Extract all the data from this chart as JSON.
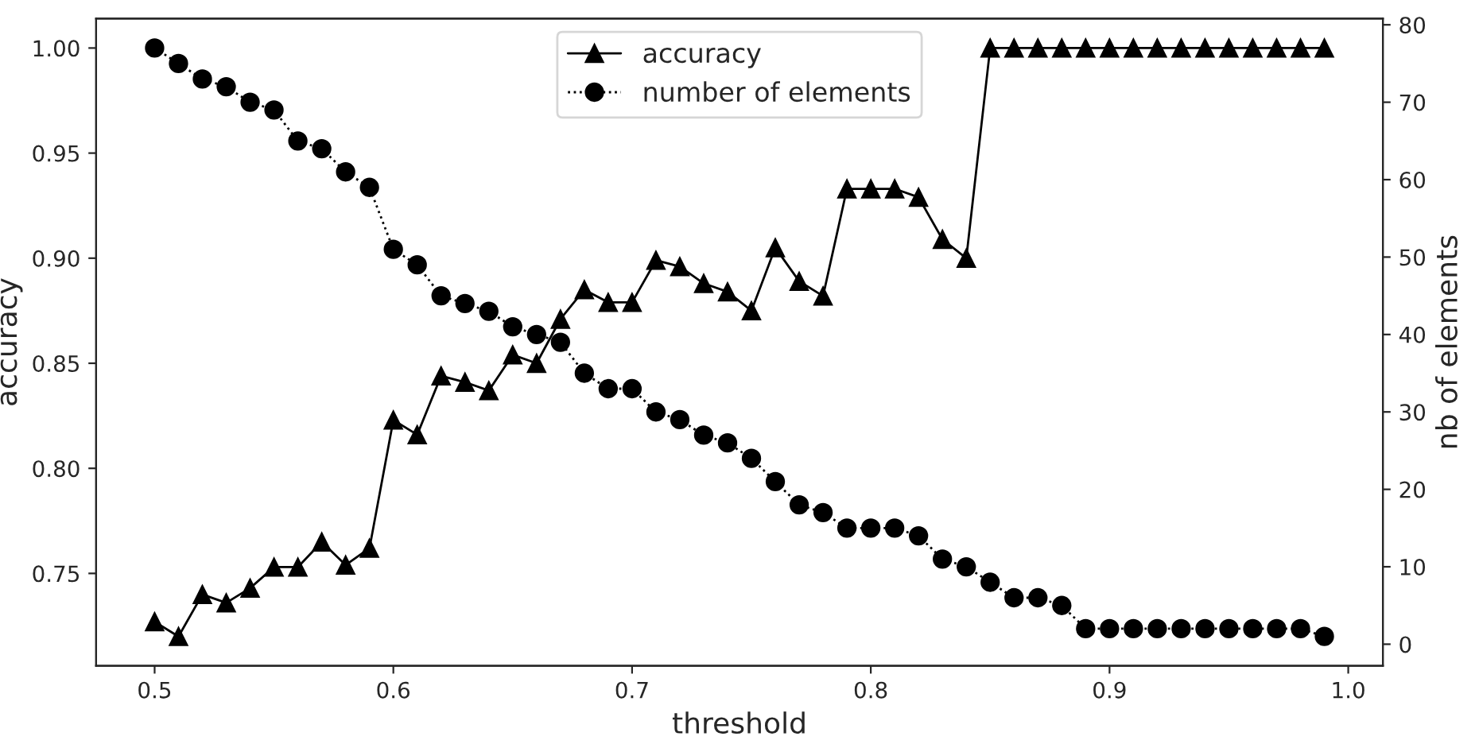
{
  "chart_data": {
    "type": "line",
    "xlabel": "threshold",
    "ylabel": "accuracy",
    "y2label": "nb of elements",
    "x": [
      0.5,
      0.51,
      0.52,
      0.53,
      0.54,
      0.55,
      0.56,
      0.57,
      0.58,
      0.59,
      0.6,
      0.61,
      0.62,
      0.63,
      0.64,
      0.65,
      0.66,
      0.67,
      0.68,
      0.69,
      0.7,
      0.71,
      0.72,
      0.73,
      0.74,
      0.75,
      0.76,
      0.77,
      0.78,
      0.79,
      0.8,
      0.81,
      0.82,
      0.83,
      0.84,
      0.85,
      0.86,
      0.87,
      0.88,
      0.89,
      0.9,
      0.91,
      0.92,
      0.93,
      0.94,
      0.95,
      0.96,
      0.97,
      0.98,
      0.99
    ],
    "series": [
      {
        "name": "accuracy",
        "color": "#000000",
        "marker": "triangle",
        "line_style": "solid",
        "values": [
          0.727,
          0.72,
          0.74,
          0.736,
          0.743,
          0.753,
          0.753,
          0.765,
          0.754,
          0.762,
          0.823,
          0.816,
          0.844,
          0.841,
          0.837,
          0.854,
          0.85,
          0.871,
          0.885,
          0.879,
          0.879,
          0.899,
          0.896,
          0.888,
          0.884,
          0.875,
          0.905,
          0.889,
          0.882,
          0.933,
          0.933,
          0.933,
          0.929,
          0.909,
          0.9,
          1.0,
          1.0,
          1.0,
          1.0,
          1.0,
          1.0,
          1.0,
          1.0,
          1.0,
          1.0,
          1.0,
          1.0,
          1.0,
          1.0,
          1.0
        ]
      },
      {
        "name": "number of elements",
        "color": "#000000",
        "marker": "circle",
        "line_style": "dotted",
        "axis": "y2",
        "values": [
          77,
          75,
          73,
          72,
          70,
          69,
          65,
          64,
          61,
          59,
          51,
          49,
          45,
          44,
          43,
          41,
          40,
          39,
          35,
          33,
          33,
          30,
          29,
          27,
          26,
          24,
          21,
          18,
          17,
          15,
          15,
          15,
          14,
          11,
          10,
          8,
          6,
          6,
          5,
          2,
          2,
          2,
          2,
          2,
          2,
          2,
          2,
          2,
          2,
          1
        ]
      }
    ],
    "xlim": [
      0.4755,
      1.0145
    ],
    "xticks": [
      {
        "value": 0.5,
        "label": "0.5"
      },
      {
        "value": 0.6,
        "label": "0.6"
      },
      {
        "value": 0.7,
        "label": "0.7"
      },
      {
        "value": 0.8,
        "label": "0.8"
      },
      {
        "value": 0.9,
        "label": "0.9"
      },
      {
        "value": 1.0,
        "label": "1.0"
      }
    ],
    "ylim": [
      0.706,
      1.014
    ],
    "yticks": [
      {
        "value": 0.75,
        "label": "0.75"
      },
      {
        "value": 0.8,
        "label": "0.80"
      },
      {
        "value": 0.85,
        "label": "0.85"
      },
      {
        "value": 0.9,
        "label": "0.90"
      },
      {
        "value": 0.95,
        "label": "0.95"
      },
      {
        "value": 1.0,
        "label": "1.00"
      }
    ],
    "y2lim": [
      -2.8,
      80.8
    ],
    "y2ticks": [
      0,
      10,
      20,
      30,
      40,
      50,
      60,
      70,
      80
    ],
    "grid": false,
    "legend": "top"
  }
}
